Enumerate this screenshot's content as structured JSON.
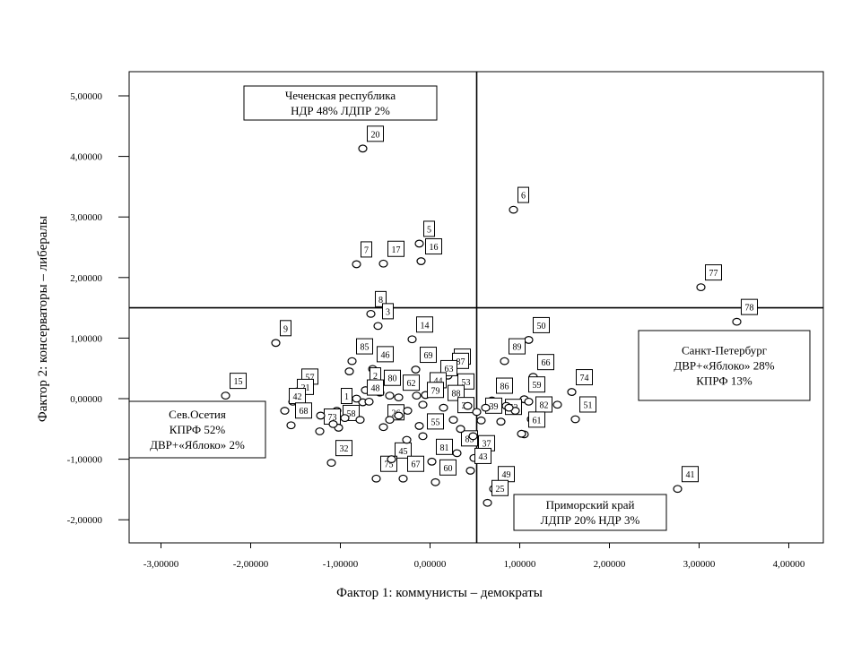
{
  "chart_data": {
    "type": "scatter",
    "title": "",
    "xlabel": "Фактор 1: коммунисты – демократы",
    "ylabel": "Фактор 2: консерваторы – либералы",
    "xlim": [
      -3.4,
      4.4
    ],
    "ylim": [
      -2.4,
      5.4
    ],
    "xticks": [
      -3,
      -2,
      -1,
      0,
      1,
      2,
      3,
      4
    ],
    "yticks": [
      -2,
      -1,
      0,
      1,
      2,
      3,
      4,
      5
    ],
    "xtick_labels": [
      "-3,00000",
      "-2,00000",
      "-1,00000",
      "0,00000",
      "1,00000",
      "2,00000",
      "3,00000",
      "4,00000"
    ],
    "ytick_labels": [
      "-2,00000",
      "-1,00000",
      "0,00000",
      "1,00000",
      "2,00000",
      "3,00000",
      "4,00000",
      "5,00000"
    ],
    "grid": false,
    "reference_lines": {
      "x": 0.52,
      "y": 1.5
    },
    "points": [
      {
        "label": "20",
        "x": -0.75,
        "y": 4.13
      },
      {
        "label": "6",
        "x": 0.93,
        "y": 3.12
      },
      {
        "label": "5",
        "x": -0.12,
        "y": 2.56
      },
      {
        "label": "16",
        "x": -0.1,
        "y": 2.27
      },
      {
        "label": "17",
        "x": -0.52,
        "y": 2.23
      },
      {
        "label": "7",
        "x": -0.82,
        "y": 2.22
      },
      {
        "label": "77",
        "x": 3.02,
        "y": 1.84
      },
      {
        "label": "8",
        "x": -0.66,
        "y": 1.4
      },
      {
        "label": "78",
        "x": 3.42,
        "y": 1.27
      },
      {
        "label": "3",
        "x": -0.58,
        "y": 1.2
      },
      {
        "label": "9",
        "x": -1.72,
        "y": 0.92
      },
      {
        "label": "14",
        "x": -0.2,
        "y": 0.98
      },
      {
        "label": "50",
        "x": 1.1,
        "y": 0.97
      },
      {
        "label": "89",
        "x": 0.83,
        "y": 0.62
      },
      {
        "label": "85",
        "x": -0.87,
        "y": 0.62
      },
      {
        "label": "46",
        "x": -0.64,
        "y": 0.49
      },
      {
        "label": "69",
        "x": -0.16,
        "y": 0.48
      },
      {
        "label": "47",
        "x": 0.22,
        "y": 0.45
      },
      {
        "label": "87",
        "x": 0.2,
        "y": 0.38
      },
      {
        "label": "66",
        "x": 1.15,
        "y": 0.36
      },
      {
        "label": "63",
        "x": 0.07,
        "y": 0.26
      },
      {
        "label": "74",
        "x": 1.58,
        "y": 0.11
      },
      {
        "label": "57",
        "x": -1.48,
        "y": 0.12
      },
      {
        "label": "2",
        "x": -0.72,
        "y": 0.14
      },
      {
        "label": "80",
        "x": -0.56,
        "y": 0.1
      },
      {
        "label": "44",
        "x": -0.05,
        "y": 0.06
      },
      {
        "label": "62",
        "x": -0.35,
        "y": 0.02
      },
      {
        "label": "53",
        "x": 0.26,
        "y": 0.04
      },
      {
        "label": "86",
        "x": 0.69,
        "y": -0.03
      },
      {
        "label": "59",
        "x": 1.05,
        "y": -0.01
      },
      {
        "label": "15",
        "x": -2.28,
        "y": 0.05
      },
      {
        "label": "21",
        "x": -1.53,
        "y": -0.05
      },
      {
        "label": "48",
        "x": -0.75,
        "y": -0.06
      },
      {
        "label": "79",
        "x": -0.08,
        "y": -0.1
      },
      {
        "label": "88",
        "x": 0.15,
        "y": -0.15
      },
      {
        "label": "1",
        "x": -1.04,
        "y": -0.2
      },
      {
        "label": "42",
        "x": -1.62,
        "y": -0.2
      },
      {
        "label": "39",
        "x": 0.57,
        "y": -0.36
      },
      {
        "label": "52",
        "x": 0.79,
        "y": -0.38
      },
      {
        "label": "82",
        "x": 1.13,
        "y": -0.34
      },
      {
        "label": "51",
        "x": 1.62,
        "y": -0.34
      },
      {
        "label": "38",
        "x": 0.26,
        "y": -0.35
      },
      {
        "label": "68",
        "x": -1.55,
        "y": -0.44
      },
      {
        "label": "58",
        "x": -1.02,
        "y": -0.48
      },
      {
        "label": "26",
        "x": -0.52,
        "y": -0.47
      },
      {
        "label": "73",
        "x": -1.23,
        "y": -0.54
      },
      {
        "label": "55",
        "x": -0.08,
        "y": -0.62
      },
      {
        "label": "61",
        "x": 1.05,
        "y": -0.59
      },
      {
        "label": "83",
        "x": 0.3,
        "y": -0.9
      },
      {
        "label": "37",
        "x": 0.49,
        "y": -0.98
      },
      {
        "label": "45",
        "x": -0.44,
        "y": -1.1
      },
      {
        "label": "81",
        "x": 0.02,
        "y": -1.04
      },
      {
        "label": "32",
        "x": -1.1,
        "y": -1.06
      },
      {
        "label": "43",
        "x": 0.45,
        "y": -1.19
      },
      {
        "label": "67",
        "x": -0.3,
        "y": -1.32
      },
      {
        "label": "60",
        "x": 0.06,
        "y": -1.38
      },
      {
        "label": "75",
        "x": -0.6,
        "y": -1.32
      },
      {
        "label": "49",
        "x": 0.71,
        "y": -1.49
      },
      {
        "label": "41",
        "x": 2.76,
        "y": -1.49
      },
      {
        "label": "25",
        "x": 0.64,
        "y": -1.72
      },
      {
        "label": "",
        "x": -0.95,
        "y": -0.32
      },
      {
        "label": "",
        "x": -0.78,
        "y": -0.35
      },
      {
        "label": "",
        "x": -0.45,
        "y": -0.35
      },
      {
        "label": "",
        "x": -0.35,
        "y": -0.28
      },
      {
        "label": "",
        "x": -0.25,
        "y": -0.2
      },
      {
        "label": "",
        "x": -0.12,
        "y": -0.45
      },
      {
        "label": "",
        "x": -1.22,
        "y": -0.28
      },
      {
        "label": "",
        "x": -1.08,
        "y": -0.42
      },
      {
        "label": "",
        "x": -0.82,
        "y": 0.0
      },
      {
        "label": "",
        "x": -0.68,
        "y": -0.05
      },
      {
        "label": "",
        "x": -0.9,
        "y": 0.45
      },
      {
        "label": "",
        "x": -0.45,
        "y": 0.05
      },
      {
        "label": "",
        "x": -0.15,
        "y": 0.05
      },
      {
        "label": "",
        "x": 0.42,
        "y": -0.12
      },
      {
        "label": "",
        "x": 0.52,
        "y": -0.22
      },
      {
        "label": "",
        "x": 0.85,
        "y": -0.12
      },
      {
        "label": "",
        "x": 0.95,
        "y": -0.2
      },
      {
        "label": "",
        "x": 1.42,
        "y": -0.1
      },
      {
        "label": "",
        "x": 1.02,
        "y": -0.58
      },
      {
        "label": "",
        "x": 0.34,
        "y": -0.5
      },
      {
        "label": "",
        "x": -0.26,
        "y": -0.68
      },
      {
        "label": "",
        "x": -0.43,
        "y": -1.0
      },
      {
        "label": "",
        "x": 0.48,
        "y": -0.62
      },
      {
        "label": "",
        "x": 0.62,
        "y": -0.15
      },
      {
        "label": "",
        "x": 1.1,
        "y": -0.05
      },
      {
        "label": "",
        "x": 0.88,
        "y": -0.15
      }
    ],
    "annotations": [
      {
        "lines": [
          "Чеченская республика",
          "НДР 48%  ЛДПР 2%"
        ]
      },
      {
        "lines": [
          "Санкт-Петербург",
          "ДВР+«Яблоко» 28%",
          "КПРФ 13%"
        ]
      },
      {
        "lines": [
          "Сев.Осетия",
          "КПРФ 52%",
          "ДВР+«Яблоко» 2%"
        ]
      },
      {
        "lines": [
          "Приморский край",
          "ЛДПР 20% НДР 3%"
        ]
      }
    ]
  }
}
